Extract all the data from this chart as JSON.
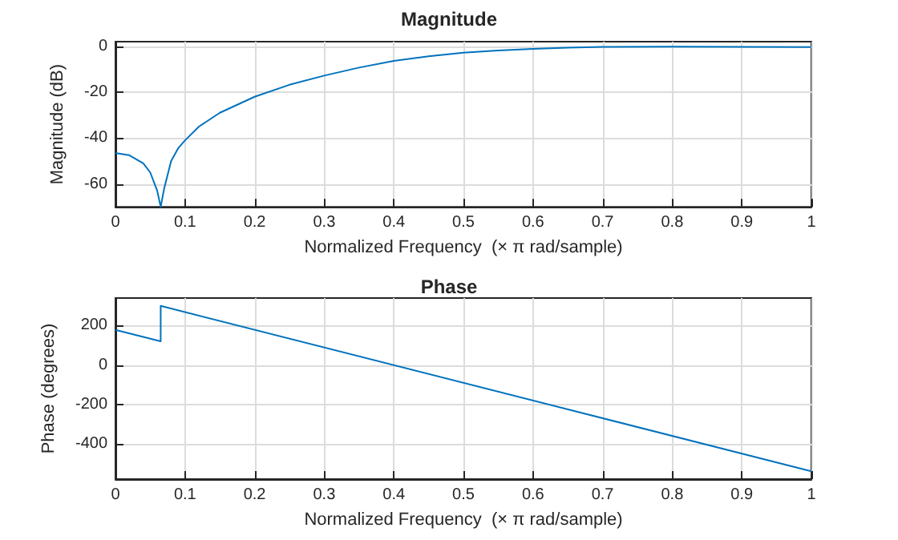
{
  "chart_data": [
    {
      "type": "line",
      "title": "Magnitude",
      "xlabel": "Normalized Frequency  (× π rad/sample)",
      "ylabel": "Magnitude (dB)",
      "xlim": [
        0,
        1
      ],
      "ylim": [
        -70,
        2
      ],
      "xticks": [
        0,
        0.1,
        0.2,
        0.3,
        0.4,
        0.5,
        0.6,
        0.7,
        0.8,
        0.9,
        1
      ],
      "yticks": [
        -60,
        -40,
        -20,
        0
      ],
      "grid": true,
      "marker": "none",
      "line_style": "solid",
      "series": [
        {
          "color": "#0072bd",
          "x": [
            0,
            0.02,
            0.04,
            0.05,
            0.06,
            0.065,
            0.07,
            0.08,
            0.09,
            0.1,
            0.12,
            0.15,
            0.2,
            0.25,
            0.3,
            0.35,
            0.4,
            0.45,
            0.5,
            0.55,
            0.6,
            0.65,
            0.7,
            0.8,
            0.9,
            1
          ],
          "values": [
            -46.5,
            -47.5,
            -51,
            -55,
            -63,
            -70,
            -62,
            -50,
            -44.5,
            -41,
            -35,
            -29,
            -22,
            -16.8,
            -12.8,
            -9.3,
            -6.4,
            -4.4,
            -2.8,
            -1.8,
            -1.1,
            -0.6,
            -0.3,
            -0.2,
            -0.3,
            -0.4
          ]
        }
      ]
    },
    {
      "type": "line",
      "title": "Phase",
      "xlabel": "Normalized Frequency  (× π rad/sample)",
      "ylabel": "Phase (degrees)",
      "xlim": [
        0,
        1
      ],
      "ylim": [
        -580,
        340
      ],
      "xticks": [
        0,
        0.1,
        0.2,
        0.3,
        0.4,
        0.5,
        0.6,
        0.7,
        0.8,
        0.9,
        1
      ],
      "yticks": [
        -400,
        -200,
        0,
        200
      ],
      "grid": true,
      "marker": "none",
      "line_style": "solid",
      "series": [
        {
          "color": "#0072bd",
          "x": [
            0,
            0.065,
            0.065,
            1
          ],
          "values": [
            178,
            120,
            300,
            -540
          ]
        }
      ]
    }
  ]
}
